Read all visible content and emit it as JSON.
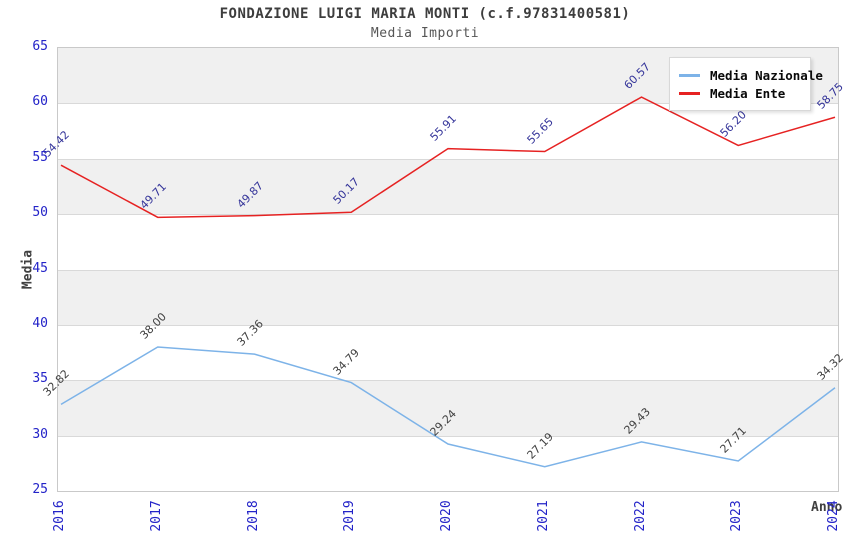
{
  "title": "FONDAZIONE LUIGI MARIA MONTI (c.f.97831400581)",
  "subtitle": "Media Importi",
  "chart_data": {
    "type": "line",
    "title": "FONDAZIONE LUIGI MARIA MONTI (c.f.97831400581)",
    "subtitle": "Media Importi",
    "xlabel": "Anno",
    "ylabel": "Media",
    "categories": [
      "2016",
      "2017",
      "2018",
      "2019",
      "2020",
      "2021",
      "2022",
      "2023",
      "2024"
    ],
    "series": [
      {
        "name": "Media Nazionale",
        "color": "#7db3e8",
        "label_color": "#3f3f3f",
        "values": [
          32.82,
          38.0,
          37.36,
          34.79,
          29.24,
          27.19,
          29.43,
          27.71,
          34.32
        ]
      },
      {
        "name": "Media Ente",
        "color": "#e62222",
        "label_color": "#333399",
        "values": [
          54.42,
          49.71,
          49.87,
          50.17,
          55.91,
          55.65,
          60.57,
          56.2,
          58.75
        ]
      }
    ],
    "ylim": [
      25,
      65
    ],
    "ytick_step": 5,
    "grid": true,
    "band_colors": [
      "#f0f0f0",
      "#ffffff"
    ],
    "tick_label_color": "#2323c8",
    "legend_position": "top-right"
  }
}
